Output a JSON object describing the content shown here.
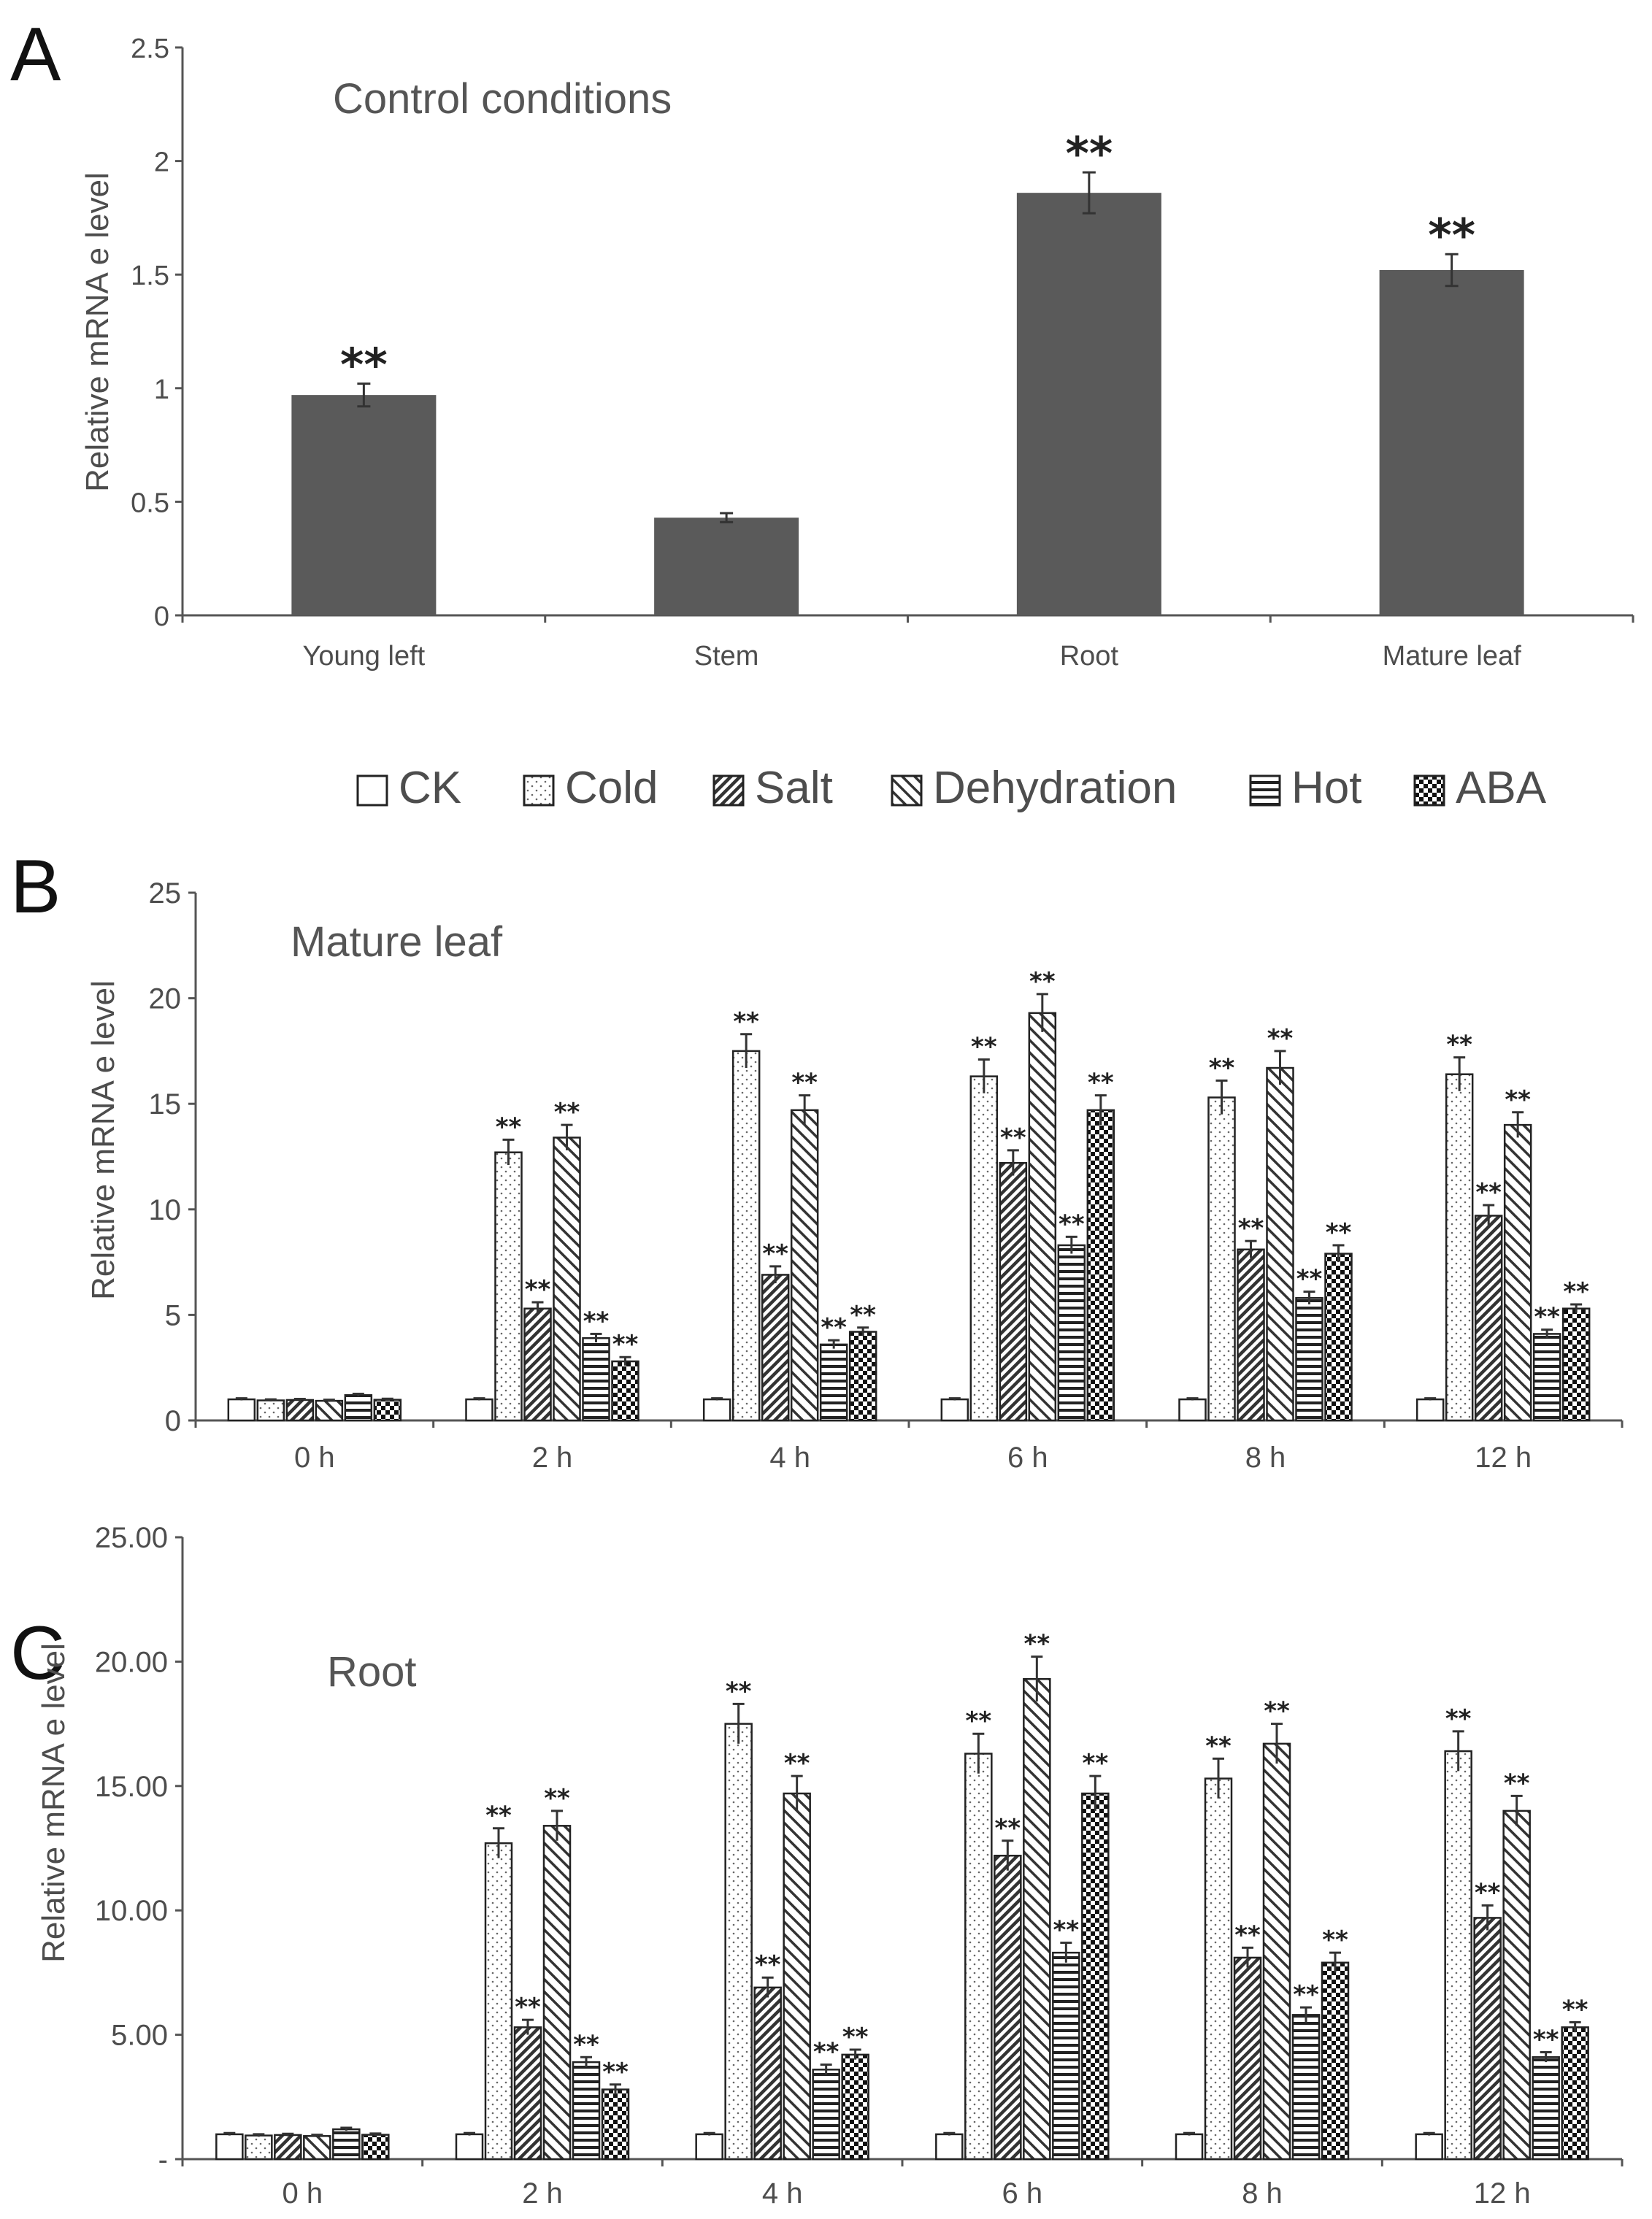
{
  "panel_letters": [
    "A",
    "B",
    "C"
  ],
  "legend": {
    "items": [
      {
        "name": "CK",
        "pattern": "ck"
      },
      {
        "name": "Cold",
        "pattern": "cold"
      },
      {
        "name": "Salt",
        "pattern": "salt"
      },
      {
        "name": "Dehydration",
        "pattern": "dehyd"
      },
      {
        "name": "Hot",
        "pattern": "hot"
      },
      {
        "name": "ABA",
        "pattern": "aba"
      }
    ]
  },
  "chart_data": [
    {
      "id": "A",
      "type": "bar",
      "title": "Control conditions",
      "ylabel": "Relative mRNA e level",
      "xlabel": "",
      "ylim": [
        0,
        2.5
      ],
      "yticks": [
        "0",
        "0.5",
        "1",
        "1.5",
        "2",
        "2.5"
      ],
      "ytick_values": [
        0,
        0.5,
        1,
        1.5,
        2,
        2.5
      ],
      "categories": [
        "Young left",
        "Stem",
        "Root",
        "Mature leaf"
      ],
      "values": [
        0.97,
        0.43,
        1.86,
        1.52
      ],
      "errors": [
        0.05,
        0.02,
        0.09,
        0.07
      ],
      "significance": [
        "**",
        "",
        "**",
        "**"
      ],
      "bar_color": "#5a5a5a"
    },
    {
      "id": "B",
      "type": "bar",
      "title": "Mature leaf",
      "ylabel": "Relative mRNA e level",
      "xlabel": "",
      "ylim": [
        0,
        25
      ],
      "yticks": [
        "0",
        "5",
        "10",
        "15",
        "20",
        "25"
      ],
      "ytick_values": [
        0,
        5,
        10,
        15,
        20,
        25
      ],
      "categories": [
        "0 h",
        "2 h",
        "4 h",
        "6 h",
        "8 h",
        "12 h"
      ],
      "series": [
        {
          "name": "CK",
          "values": [
            1.0,
            1.0,
            1.0,
            1.0,
            1.0,
            1.0
          ],
          "errors": [
            0.05,
            0.05,
            0.05,
            0.05,
            0.05,
            0.05
          ],
          "sig": [
            "",
            "",
            "",
            "",
            "",
            ""
          ]
        },
        {
          "name": "Cold",
          "values": [
            0.95,
            12.7,
            17.5,
            16.3,
            15.3,
            16.4
          ],
          "errors": [
            0.05,
            0.6,
            0.8,
            0.8,
            0.8,
            0.8
          ],
          "sig": [
            "",
            "**",
            "**",
            "**",
            "**",
            "**"
          ]
        },
        {
          "name": "Salt",
          "values": [
            0.97,
            5.3,
            6.9,
            12.2,
            8.1,
            9.7
          ],
          "errors": [
            0.05,
            0.3,
            0.4,
            0.6,
            0.4,
            0.5
          ],
          "sig": [
            "",
            "**",
            "**",
            "**",
            "**",
            "**"
          ]
        },
        {
          "name": "Dehydration",
          "values": [
            0.93,
            13.4,
            14.7,
            19.3,
            16.7,
            14.0
          ],
          "errors": [
            0.05,
            0.6,
            0.7,
            0.9,
            0.8,
            0.6
          ],
          "sig": [
            "",
            "**",
            "**",
            "**",
            "**",
            "**"
          ]
        },
        {
          "name": "Hot",
          "values": [
            1.2,
            3.9,
            3.6,
            8.3,
            5.8,
            4.1
          ],
          "errors": [
            0.06,
            0.2,
            0.2,
            0.4,
            0.3,
            0.2
          ],
          "sig": [
            "",
            "**",
            "**",
            "**",
            "**",
            "**"
          ]
        },
        {
          "name": "ABA",
          "values": [
            0.98,
            2.8,
            4.2,
            14.7,
            7.9,
            5.3
          ],
          "errors": [
            0.05,
            0.2,
            0.2,
            0.7,
            0.4,
            0.2
          ],
          "sig": [
            "",
            "**",
            "**",
            "**",
            "**",
            "**"
          ]
        }
      ]
    },
    {
      "id": "C",
      "type": "bar",
      "title": "Root",
      "ylabel": "Relative mRNA e level",
      "xlabel": "",
      "ylim": [
        0,
        25
      ],
      "yticks": [
        "-",
        "5.00",
        "10.00",
        "15.00",
        "20.00",
        "25.00"
      ],
      "ytick_values": [
        0,
        5,
        10,
        15,
        20,
        25
      ],
      "categories": [
        "0 h",
        "2 h",
        "4 h",
        "6 h",
        "8 h",
        "12 h"
      ],
      "series": [
        {
          "name": "CK",
          "values": [
            1.0,
            1.0,
            1.0,
            1.0,
            1.0,
            1.0
          ],
          "errors": [
            0.05,
            0.05,
            0.05,
            0.05,
            0.05,
            0.05
          ],
          "sig": [
            "",
            "",
            "",
            "",
            "",
            ""
          ]
        },
        {
          "name": "Cold",
          "values": [
            0.95,
            12.7,
            17.5,
            16.3,
            15.3,
            16.4
          ],
          "errors": [
            0.05,
            0.6,
            0.8,
            0.8,
            0.8,
            0.8
          ],
          "sig": [
            "",
            "**",
            "**",
            "**",
            "**",
            "**"
          ]
        },
        {
          "name": "Salt",
          "values": [
            0.97,
            5.3,
            6.9,
            12.2,
            8.1,
            9.7
          ],
          "errors": [
            0.05,
            0.3,
            0.4,
            0.6,
            0.4,
            0.5
          ],
          "sig": [
            "",
            "**",
            "**",
            "**",
            "**",
            "**"
          ]
        },
        {
          "name": "Dehydration",
          "values": [
            0.93,
            13.4,
            14.7,
            19.3,
            16.7,
            14.0
          ],
          "errors": [
            0.05,
            0.6,
            0.7,
            0.9,
            0.8,
            0.6
          ],
          "sig": [
            "",
            "**",
            "**",
            "**",
            "**",
            "**"
          ]
        },
        {
          "name": "Hot",
          "values": [
            1.2,
            3.9,
            3.6,
            8.3,
            5.8,
            4.1
          ],
          "errors": [
            0.06,
            0.2,
            0.2,
            0.4,
            0.3,
            0.2
          ],
          "sig": [
            "",
            "**",
            "**",
            "**",
            "**",
            "**"
          ]
        },
        {
          "name": "ABA",
          "values": [
            0.98,
            2.8,
            4.2,
            14.7,
            7.9,
            5.3
          ],
          "errors": [
            0.05,
            0.2,
            0.2,
            0.7,
            0.4,
            0.2
          ],
          "sig": [
            "",
            "**",
            "**",
            "**",
            "**",
            "**"
          ]
        }
      ]
    }
  ]
}
